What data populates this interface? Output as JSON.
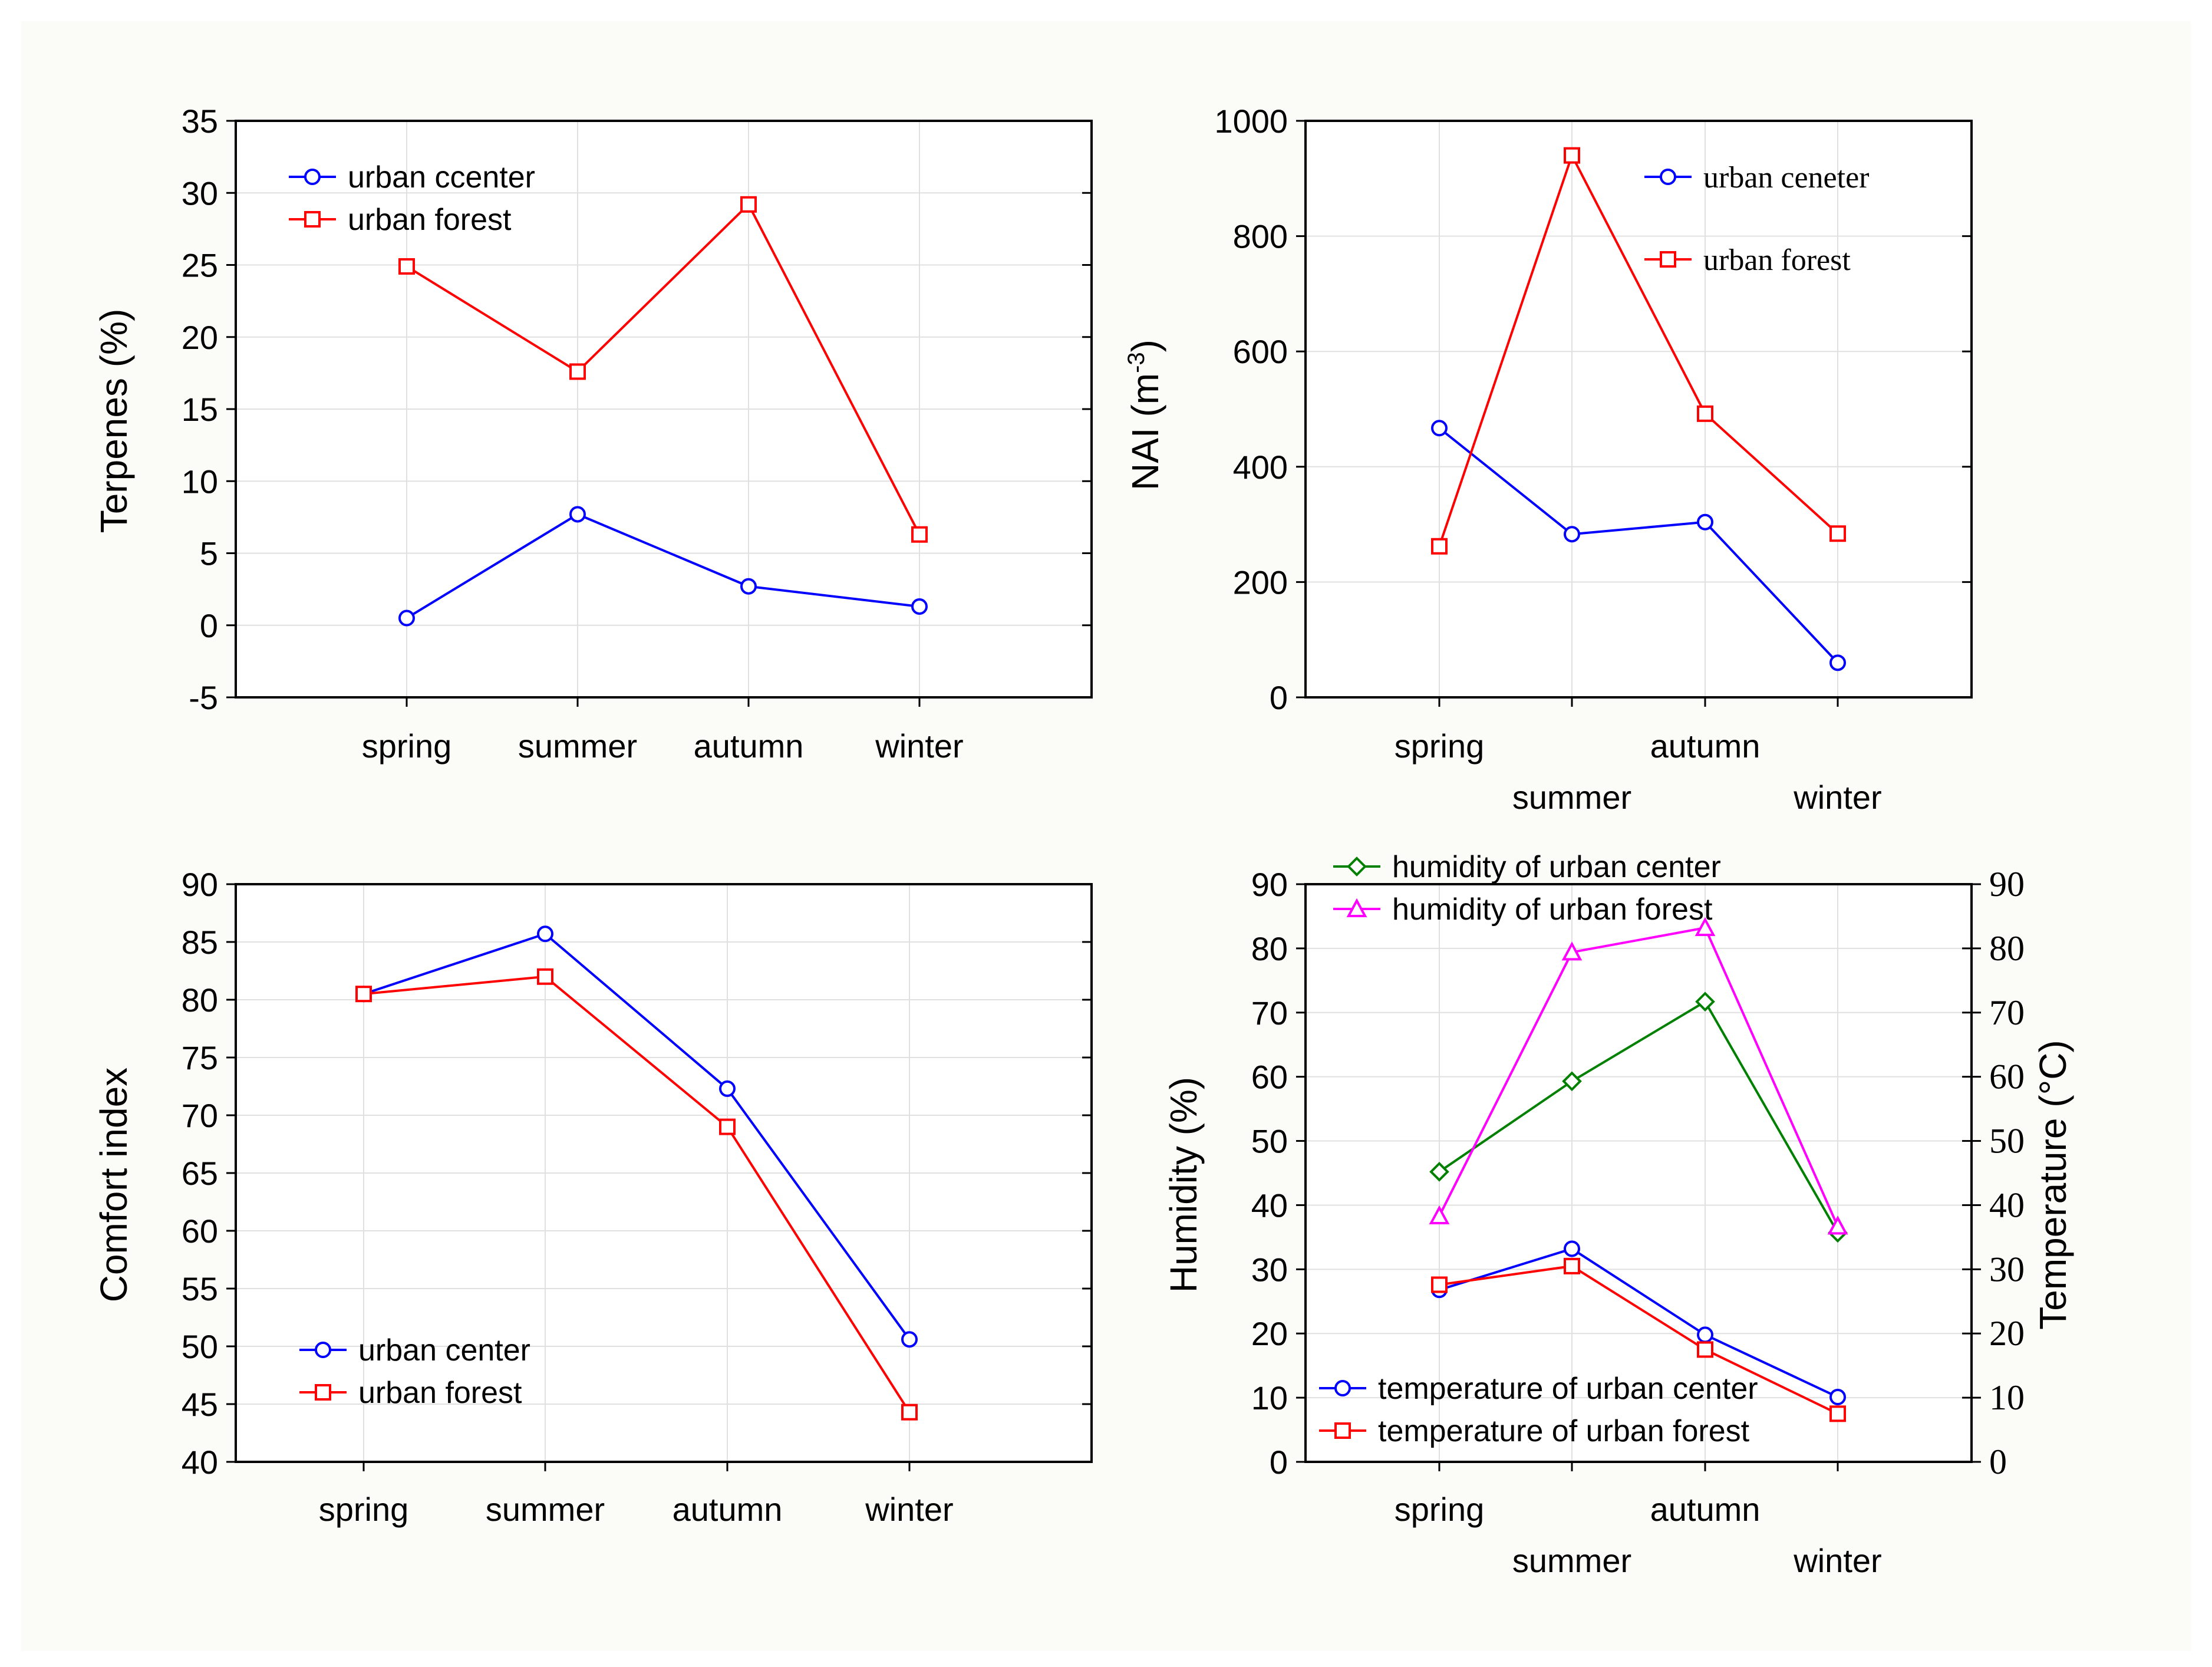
{
  "chart_data": [
    {
      "type": "line",
      "panel": "top-left",
      "title": "",
      "xlabel": "",
      "ylabel": "Terpenes (%)",
      "categories": [
        "spring",
        "summer",
        "autumn",
        "winter"
      ],
      "ylim": [
        -5,
        35
      ],
      "yticks": [
        "-5",
        "0",
        "5",
        "10",
        "15",
        "20",
        "25",
        "30",
        "35"
      ],
      "legend_position": "top-left",
      "series": [
        {
          "name": "urban ccenter",
          "color": "#0000ff",
          "marker": "circle",
          "values": [
            0.5,
            7.7,
            2.7,
            1.3
          ]
        },
        {
          "name": "urban forest",
          "color": "#ff0000",
          "marker": "square",
          "values": [
            24.9,
            17.6,
            29.2,
            6.3
          ]
        }
      ]
    },
    {
      "type": "line",
      "panel": "top-right",
      "title": "",
      "xlabel": "",
      "ylabel_main": "NAI (m",
      "ylabel_sup": "-3",
      "ylabel_close": ")",
      "categories": [
        "spring",
        "summer",
        "autumn",
        "winter"
      ],
      "ylim": [
        0,
        1000
      ],
      "yticks": [
        "0",
        "200",
        "400",
        "600",
        "800",
        "1000"
      ],
      "legend_position": "top-right",
      "series": [
        {
          "name": "urban  ceneter",
          "color": "#0000ff",
          "marker": "circle",
          "values": [
            467,
            283,
            304,
            60
          ]
        },
        {
          "name": "urban forest",
          "color": "#ff0000",
          "marker": "square",
          "values": [
            262,
            940,
            492,
            284
          ]
        }
      ]
    },
    {
      "type": "line",
      "panel": "bottom-left",
      "title": "",
      "xlabel": "",
      "ylabel": "Comfort index",
      "categories": [
        "spring",
        "summer",
        "autumn",
        "winter"
      ],
      "ylim": [
        40,
        90
      ],
      "yticks": [
        "40",
        "45",
        "50",
        "55",
        "60",
        "65",
        "70",
        "75",
        "80",
        "85",
        "90"
      ],
      "legend_position": "bottom-left",
      "series": [
        {
          "name": "urban center",
          "color": "#0000ff",
          "marker": "circle",
          "values": [
            80.5,
            85.7,
            72.3,
            50.6
          ]
        },
        {
          "name": "urban forest",
          "color": "#ff0000",
          "marker": "square",
          "values": [
            80.5,
            82.0,
            69.0,
            44.3
          ]
        }
      ]
    },
    {
      "type": "line",
      "panel": "bottom-right",
      "title": "",
      "xlabel": "",
      "ylabel": "Humidity (%)",
      "ylabel_right": "Temperature (°C)",
      "categories": [
        "spring",
        "summer",
        "autumn",
        "winter"
      ],
      "ylim": [
        0,
        90
      ],
      "y2lim": [
        0,
        90
      ],
      "yticks": [
        "0",
        "10",
        "20",
        "30",
        "40",
        "50",
        "60",
        "70",
        "80",
        "90"
      ],
      "y2ticks": [
        "0",
        "10",
        "20",
        "30",
        "40",
        "50",
        "60",
        "70",
        "80",
        "90"
      ],
      "legend_position": "top-left and bottom-left",
      "series": [
        {
          "name": "humidity of urban center",
          "color": "#008000",
          "marker": "diamond",
          "axis": "left",
          "values": [
            45.2,
            59.3,
            71.7,
            35.7
          ]
        },
        {
          "name": "humidity of urban forest",
          "color": "#ff00ff",
          "marker": "triangle",
          "axis": "left",
          "values": [
            38.3,
            79.4,
            83.2,
            36.7
          ]
        },
        {
          "name": "temperature of urban center",
          "color": "#0000ff",
          "marker": "circle",
          "axis": "right",
          "values": [
            26.8,
            33.2,
            19.8,
            10.1
          ]
        },
        {
          "name": "temperature of urban forest",
          "color": "#ff0000",
          "marker": "square",
          "axis": "right",
          "values": [
            27.6,
            30.5,
            17.5,
            7.5
          ]
        }
      ]
    }
  ]
}
